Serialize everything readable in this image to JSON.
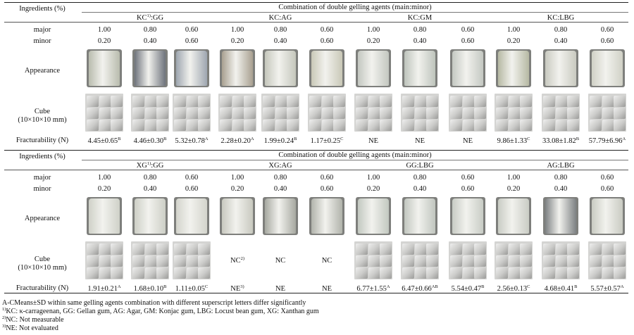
{
  "colors": {
    "rule": "#222222"
  },
  "panels": [
    {
      "ingredients_label": "Ingredients (%)",
      "combination_title": "Combination of double gelling agents (main:minor)",
      "groups": [
        {
          "name": "KC",
          "sup": "1)",
          "rest": ":GG"
        },
        {
          "name": "KC:AG",
          "sup": "",
          "rest": ""
        },
        {
          "name": "KC:GM",
          "sup": "",
          "rest": ""
        },
        {
          "name": "KC:LBG",
          "sup": "",
          "rest": ""
        }
      ],
      "major_label": "major",
      "minor_label": "minor",
      "major": [
        "1.00",
        "0.80",
        "0.60",
        "1.00",
        "0.80",
        "0.60",
        "1.00",
        "0.80",
        "0.60",
        "1.00",
        "0.80",
        "0.60"
      ],
      "minor": [
        "0.20",
        "0.40",
        "0.60",
        "0.20",
        "0.40",
        "0.60",
        "0.20",
        "0.40",
        "0.60",
        "0.20",
        "0.40",
        "0.60"
      ],
      "appearance_label": "Appearance",
      "appearance_colors": [
        "#b9bcae",
        "#6e737c",
        "#9ea6b0",
        "#a8a090",
        "#c5c7bc",
        "#c9c8b7",
        "#c3c7c0",
        "#bec4bc",
        "#c4c8c2",
        "#b6b9a3",
        "#c9cac0",
        "#d0d1c6"
      ],
      "cube_label_1": "Cube",
      "cube_label_2": "(10×10×10 mm)",
      "cube_cells": [
        {
          "type": "image"
        },
        {
          "type": "image"
        },
        {
          "type": "image"
        },
        {
          "type": "image"
        },
        {
          "type": "image"
        },
        {
          "type": "image"
        },
        {
          "type": "image"
        },
        {
          "type": "image"
        },
        {
          "type": "image"
        },
        {
          "type": "image"
        },
        {
          "type": "image"
        },
        {
          "type": "image"
        }
      ],
      "fracturability_label": "Fracturability (N)",
      "fracturability": [
        {
          "value": "4.45±0.65",
          "sup": "B"
        },
        {
          "value": "4.46±0.30",
          "sup": "B"
        },
        {
          "value": "5.32±0.78",
          "sup": "A"
        },
        {
          "value": "2.28±0.20",
          "sup": "A"
        },
        {
          "value": "1.99±0.24",
          "sup": "B"
        },
        {
          "value": "1.17±0.25",
          "sup": "C"
        },
        {
          "value": "NE",
          "sup": ""
        },
        {
          "value": "NE",
          "sup": ""
        },
        {
          "value": "NE",
          "sup": ""
        },
        {
          "value": "9.86±1.33",
          "sup": "C"
        },
        {
          "value": "33.08±1.82",
          "sup": "B"
        },
        {
          "value": "57.79±6.96",
          "sup": "A"
        }
      ]
    },
    {
      "ingredients_label": "Ingredients (%)",
      "combination_title": "Combination of double gelling agents (main:minor)",
      "groups": [
        {
          "name": "XG",
          "sup": "1)",
          "rest": ":GG"
        },
        {
          "name": "XG:AG",
          "sup": "",
          "rest": ""
        },
        {
          "name": "GG:LBG",
          "sup": "",
          "rest": ""
        },
        {
          "name": "AG:LBG",
          "sup": "",
          "rest": ""
        }
      ],
      "major_label": "major",
      "minor_label": "minor",
      "major": [
        "1.00",
        "0.80",
        "0.60",
        "1.00",
        "0.80",
        "0.60",
        "1.00",
        "0.80",
        "0.60",
        "1.00",
        "0.80",
        "0.60"
      ],
      "minor": [
        "0.20",
        "0.40",
        "0.60",
        "0.20",
        "0.40",
        "0.60",
        "0.20",
        "0.40",
        "0.60",
        "0.20",
        "0.40",
        "0.60"
      ],
      "appearance_label": "Appearance",
      "appearance_colors": [
        "#cfd1c8",
        "#cdcfc6",
        "#d3d4cc",
        "#c8c9bf",
        "#a7a9a1",
        "#b1b3ab",
        "#c2c8c0",
        "#c1c6bf",
        "#c8ccc5",
        "#c9ccc4",
        "#7d8183",
        "#c9cbc2"
      ],
      "cube_label_1": "Cube",
      "cube_label_2": "(10×10×10 mm)",
      "cube_cells": [
        {
          "type": "image"
        },
        {
          "type": "image"
        },
        {
          "type": "image"
        },
        {
          "type": "text",
          "value": "NC",
          "sup": "2)"
        },
        {
          "type": "text",
          "value": "NC",
          "sup": ""
        },
        {
          "type": "text",
          "value": "NC",
          "sup": ""
        },
        {
          "type": "image"
        },
        {
          "type": "image"
        },
        {
          "type": "image"
        },
        {
          "type": "image"
        },
        {
          "type": "image"
        },
        {
          "type": "image"
        }
      ],
      "fracturability_label": "Fracturability (N)",
      "fracturability": [
        {
          "value": "1.91±0.21",
          "sup": "A"
        },
        {
          "value": "1.68±0.10",
          "sup": "B"
        },
        {
          "value": "1.11±0.05",
          "sup": "C"
        },
        {
          "value": "NE",
          "sup": "3)"
        },
        {
          "value": "NE",
          "sup": ""
        },
        {
          "value": "NE",
          "sup": ""
        },
        {
          "value": "6.77±1.55",
          "sup": "A"
        },
        {
          "value": "6.47±0.66",
          "sup": "AB"
        },
        {
          "value": "5.54±0.47",
          "sup": "B"
        },
        {
          "value": "2.56±0.13",
          "sup": "C"
        },
        {
          "value": "4.68±0.41",
          "sup": "B"
        },
        {
          "value": "5.57±0.57",
          "sup": "A"
        }
      ]
    }
  ],
  "footnotes": [
    {
      "sup": "",
      "text": "A-CMeans±SD within same gelling agents combination with different superscript letters differ significantly"
    },
    {
      "sup": "1)",
      "text": "KC: κ-carrageenan, GG: Gellan gum, AG: Agar, GM: Konjac gum, LBG: Locust bean gum, XG: Xanthan gum"
    },
    {
      "sup": "2)",
      "text": "NC: Not measurable"
    },
    {
      "sup": "3)",
      "text": "NE: Not evaluated"
    }
  ]
}
